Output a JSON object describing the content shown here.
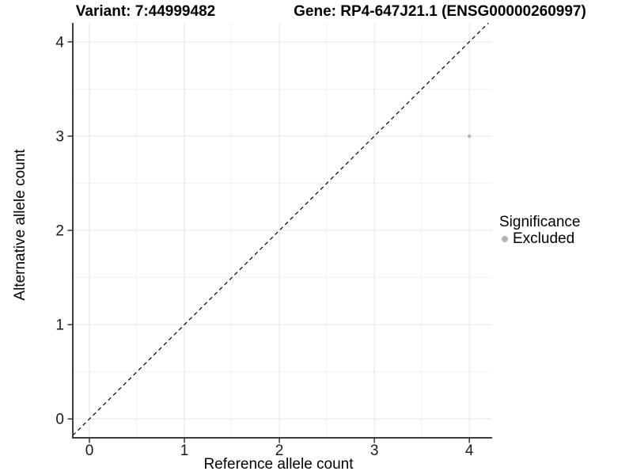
{
  "chart_data": {
    "type": "scatter",
    "title_left": "Variant: 7:44999482",
    "title_right": "Gene: RP4-647J21.1 (ENSG00000260997)",
    "xlabel": "Reference allele count",
    "ylabel": "Alternative allele count",
    "xlim": [
      -0.175,
      4.24
    ],
    "ylim": [
      -0.2,
      4.2
    ],
    "x_ticks": [
      0,
      1,
      2,
      3,
      4
    ],
    "y_ticks": [
      0,
      1,
      2,
      3,
      4
    ],
    "x_minor_ticks": [
      0.5,
      1.5,
      2.5,
      3.5
    ],
    "y_minor_ticks": [
      0.5,
      1.5,
      2.5,
      3.5
    ],
    "grid": true,
    "identity_line": {
      "style": "dashed",
      "color": "#000000"
    },
    "series": [
      {
        "name": "Excluded",
        "color": "#b3b3b3",
        "point_radius": 2.2,
        "points": [
          [
            4,
            3
          ]
        ]
      }
    ],
    "legend": {
      "position": "right",
      "title": "Significance",
      "items": [
        {
          "label": "Excluded",
          "color": "#b3b3b3"
        }
      ]
    },
    "colors": {
      "grid_major": "#e4e4e4",
      "grid_minor": "#f2f2f2",
      "axis_line": "#3c3c3c",
      "tick_mark": "#333333",
      "tick_text": "#1a1a1a"
    }
  }
}
